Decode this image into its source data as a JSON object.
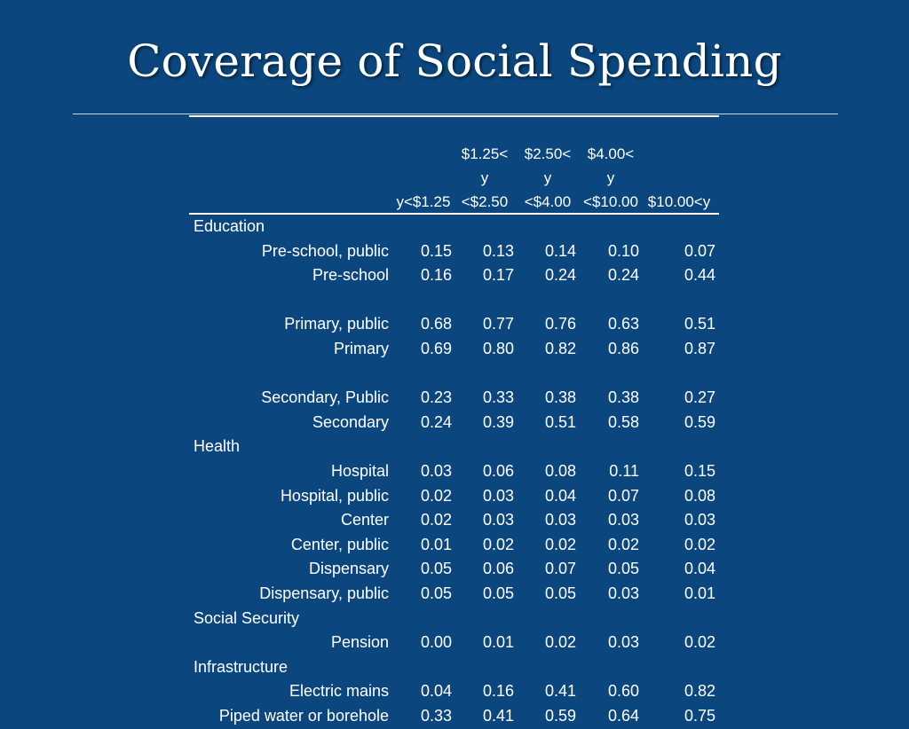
{
  "title": "Coverage of Social Spending",
  "table": {
    "headers": [
      [
        "",
        "",
        "y<$1.25"
      ],
      [
        "$1.25<",
        "y",
        "<$2.50"
      ],
      [
        "$2.50<",
        "y",
        "<$4.00"
      ],
      [
        "$4.00<",
        "y",
        "<$10.00"
      ],
      [
        "",
        "",
        "$10.00<y"
      ]
    ],
    "rows": [
      {
        "type": "section",
        "label": "Education"
      },
      {
        "type": "data",
        "label": "Pre-school, public",
        "values": [
          "0.15",
          "0.13",
          "0.14",
          "0.10",
          "0.07"
        ]
      },
      {
        "type": "data",
        "label": "Pre-school",
        "values": [
          "0.16",
          "0.17",
          "0.24",
          "0.24",
          "0.44"
        ]
      },
      {
        "type": "blank"
      },
      {
        "type": "data",
        "label": "Primary, public",
        "values": [
          "0.68",
          "0.77",
          "0.76",
          "0.63",
          "0.51"
        ]
      },
      {
        "type": "data",
        "label": "Primary",
        "values": [
          "0.69",
          "0.80",
          "0.82",
          "0.86",
          "0.87"
        ]
      },
      {
        "type": "blank"
      },
      {
        "type": "data",
        "label": "Secondary, Public",
        "values": [
          "0.23",
          "0.33",
          "0.38",
          "0.38",
          "0.27"
        ]
      },
      {
        "type": "data",
        "label": "Secondary",
        "values": [
          "0.24",
          "0.39",
          "0.51",
          "0.58",
          "0.59"
        ]
      },
      {
        "type": "section",
        "label": "Health"
      },
      {
        "type": "data",
        "label": "Hospital",
        "values": [
          "0.03",
          "0.06",
          "0.08",
          "0.11",
          "0.15"
        ]
      },
      {
        "type": "data",
        "label": "Hospital, public",
        "values": [
          "0.02",
          "0.03",
          "0.04",
          "0.07",
          "0.08"
        ]
      },
      {
        "type": "data",
        "label": "Center",
        "values": [
          "0.02",
          "0.03",
          "0.03",
          "0.03",
          "0.03"
        ]
      },
      {
        "type": "data",
        "label": "Center, public",
        "values": [
          "0.01",
          "0.02",
          "0.02",
          "0.02",
          "0.02"
        ]
      },
      {
        "type": "data",
        "label": "Dispensary",
        "values": [
          "0.05",
          "0.06",
          "0.07",
          "0.05",
          "0.04"
        ]
      },
      {
        "type": "data",
        "label": "Dispensary, public",
        "values": [
          "0.05",
          "0.05",
          "0.05",
          "0.03",
          "0.01"
        ]
      },
      {
        "type": "section",
        "label": "Social Security"
      },
      {
        "type": "data",
        "label": "Pension",
        "values": [
          "0.00",
          "0.01",
          "0.02",
          "0.03",
          "0.02"
        ]
      },
      {
        "type": "section",
        "label": "Infrastructure"
      },
      {
        "type": "data",
        "label": "Electric mains",
        "values": [
          "0.04",
          "0.16",
          "0.41",
          "0.60",
          "0.82"
        ]
      },
      {
        "type": "data",
        "label": "Piped water or borehole",
        "values": [
          "0.33",
          "0.41",
          "0.59",
          "0.64",
          "0.75"
        ]
      }
    ]
  }
}
